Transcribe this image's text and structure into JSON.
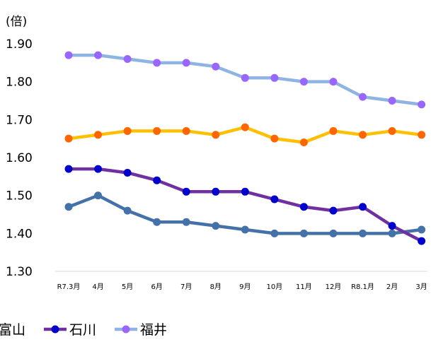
{
  "chart_data": {
    "type": "line",
    "ylabel": "(倍)",
    "ylim": [
      1.3,
      1.9
    ],
    "yticks": [
      "1.30",
      "1.40",
      "1.50",
      "1.60",
      "1.70",
      "1.80",
      "1.90"
    ],
    "categories": [
      "R7.3月",
      "4月",
      "5月",
      "6月",
      "7月",
      "8月",
      "9月",
      "10月",
      "11月",
      "12月",
      "R8.1月",
      "2月",
      "3月"
    ],
    "grid": false,
    "legend_position": "bottom",
    "series": [
      {
        "name": "",
        "color": "#FFC000",
        "marker_color": "#FF6600",
        "values": [
          1.65,
          1.66,
          1.67,
          1.67,
          1.67,
          1.66,
          1.68,
          1.65,
          1.64,
          1.67,
          1.66,
          1.67,
          1.66
        ]
      },
      {
        "name": "富山",
        "color": "#4472A8",
        "marker_color": "#4472A8",
        "values": [
          1.47,
          1.5,
          1.46,
          1.43,
          1.43,
          1.42,
          1.41,
          1.4,
          1.4,
          1.4,
          1.4,
          1.4,
          1.41
        ]
      },
      {
        "name": "石川",
        "color": "#7030A0",
        "marker_color": "#0000CC",
        "values": [
          1.57,
          1.57,
          1.56,
          1.54,
          1.51,
          1.51,
          1.51,
          1.49,
          1.47,
          1.46,
          1.47,
          1.42,
          1.38
        ]
      },
      {
        "name": "福井",
        "color": "#8DB4E2",
        "marker_color": "#9966FF",
        "values": [
          1.87,
          1.87,
          1.86,
          1.85,
          1.85,
          1.84,
          1.81,
          1.81,
          1.8,
          1.8,
          1.76,
          1.75,
          1.74
        ]
      }
    ],
    "legend_entries": [
      "富山",
      "石川",
      "福井"
    ]
  }
}
